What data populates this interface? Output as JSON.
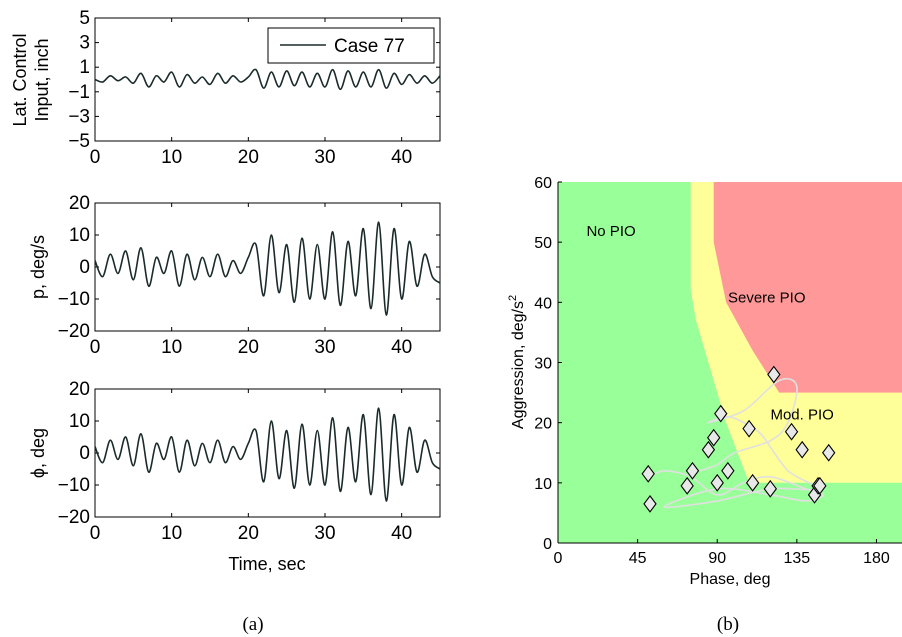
{
  "figure": {
    "caption_a": "(a)",
    "caption_b": "(b)"
  },
  "chart_data": [
    {
      "type": "line",
      "panel": "a-top",
      "ylabel_line1": "Lat. Control",
      "ylabel_line2": "Input, inch",
      "xlim": [
        0,
        45
      ],
      "ylim": [
        -5,
        5
      ],
      "xticks": [
        0,
        10,
        20,
        30,
        40
      ],
      "yticks": [
        -5,
        -3,
        -1,
        1,
        3,
        5
      ],
      "legend": "Case 77",
      "series": [
        {
          "name": "Case 77",
          "color": "#1b2b2b",
          "x": [
            0,
            1,
            2,
            3,
            4,
            5,
            6,
            7,
            8,
            9,
            10,
            11,
            12,
            13,
            14,
            15,
            16,
            17,
            18,
            19,
            20,
            21,
            22,
            23,
            24,
            25,
            26,
            27,
            28,
            29,
            30,
            31,
            32,
            33,
            34,
            35,
            36,
            37,
            38,
            39,
            40,
            41,
            42,
            43,
            44,
            45
          ],
          "y": [
            0,
            -0.2,
            0.3,
            -0.1,
            0.2,
            -0.3,
            0.5,
            -0.6,
            0.3,
            -0.2,
            0.6,
            -0.6,
            0.4,
            -0.3,
            0.2,
            -0.4,
            0.5,
            -0.3,
            0.3,
            -0.2,
            0.2,
            0.8,
            -0.7,
            0.6,
            -0.6,
            0.7,
            -0.5,
            0.6,
            -0.6,
            0.5,
            -0.6,
            0.8,
            -0.8,
            0.7,
            -0.6,
            0.6,
            -0.6,
            0.8,
            -0.7,
            0.5,
            -0.4,
            0.4,
            -0.3,
            0.3,
            -0.3,
            0.3
          ]
        }
      ]
    },
    {
      "type": "line",
      "panel": "a-mid",
      "ylabel": "p, deg/s",
      "xlim": [
        0,
        45
      ],
      "ylim": [
        -20,
        20
      ],
      "xticks": [
        0,
        10,
        20,
        30,
        40
      ],
      "yticks": [
        -20,
        -10,
        0,
        10,
        20
      ],
      "series": [
        {
          "color": "#1b2b2b",
          "x": [
            0,
            1,
            2,
            3,
            4,
            5,
            6,
            7,
            8,
            9,
            10,
            11,
            12,
            13,
            14,
            15,
            16,
            17,
            18,
            19,
            20,
            21,
            22,
            23,
            24,
            25,
            26,
            27,
            28,
            29,
            30,
            31,
            32,
            33,
            34,
            35,
            36,
            37,
            38,
            39,
            40,
            41,
            42,
            43,
            44,
            45
          ],
          "y": [
            2,
            -3,
            4,
            -2,
            5,
            -4,
            6,
            -6,
            3,
            -2,
            5,
            -6,
            4,
            -4,
            3,
            -3,
            4,
            -3,
            2,
            -2,
            3,
            7,
            -9,
            10,
            -8,
            7,
            -11,
            9,
            -10,
            7,
            -10,
            11,
            -12,
            8,
            -9,
            12,
            -13,
            14,
            -15,
            12,
            -10,
            8,
            -6,
            4,
            -3,
            -5
          ]
        }
      ]
    },
    {
      "type": "line",
      "panel": "a-bottom",
      "ylabel": "ϕ, deg",
      "xlabel": "Time, sec",
      "xlim": [
        0,
        45
      ],
      "ylim": [
        -20,
        20
      ],
      "xticks": [
        0,
        10,
        20,
        30,
        40
      ],
      "yticks": [
        -20,
        -10,
        0,
        10,
        20
      ],
      "series": [
        {
          "color": "#1b2b2b",
          "x": [
            0,
            1,
            2,
            3,
            4,
            5,
            6,
            7,
            8,
            9,
            10,
            11,
            12,
            13,
            14,
            15,
            16,
            17,
            18,
            19,
            20,
            21,
            22,
            23,
            24,
            25,
            26,
            27,
            28,
            29,
            30,
            31,
            32,
            33,
            34,
            35,
            36,
            37,
            38,
            39,
            40,
            41,
            42,
            43,
            44,
            45
          ],
          "y": [
            2,
            -3,
            4,
            -2,
            5,
            -4,
            6,
            -6,
            3,
            -2,
            5,
            -6,
            4,
            -4,
            3,
            -3,
            4,
            -3,
            2,
            -2,
            3,
            7,
            -9,
            10,
            -8,
            7,
            -11,
            9,
            -10,
            7,
            -10,
            11,
            -12,
            8,
            -9,
            12,
            -13,
            14,
            -15,
            12,
            -10,
            8,
            -6,
            4,
            -3,
            -5
          ]
        }
      ]
    },
    {
      "type": "scatter",
      "panel": "b",
      "xlabel": "Phase, deg",
      "ylabel": "Aggression, deg/s",
      "ylabel_sup": "2",
      "xlim": [
        0,
        195
      ],
      "ylim": [
        0,
        60
      ],
      "xticks": [
        0,
        45,
        90,
        135,
        180
      ],
      "yticks": [
        0,
        10,
        20,
        30,
        40,
        50,
        60
      ],
      "regions": [
        {
          "label": "No PIO",
          "color": "#99ff99",
          "label_at": [
            30,
            51
          ]
        },
        {
          "label": "Mod. PIO",
          "color": "#ffff99",
          "label_at": [
            138,
            20.5
          ]
        },
        {
          "label": "Severe PIO",
          "color": "#ff9999",
          "label_at": [
            118,
            40
          ]
        }
      ],
      "moderate_boundary": [
        [
          75,
          60
        ],
        [
          75,
          42
        ],
        [
          78,
          37
        ],
        [
          85,
          30
        ],
        [
          95,
          20
        ],
        [
          108,
          10
        ],
        [
          195,
          10
        ],
        [
          195,
          60
        ]
      ],
      "severe_boundary": [
        [
          88,
          60
        ],
        [
          88,
          50
        ],
        [
          95,
          40
        ],
        [
          110,
          32
        ],
        [
          125,
          25
        ],
        [
          195,
          25
        ],
        [
          195,
          60
        ]
      ],
      "trajectory": [
        [
          52,
          11
        ],
        [
          60,
          12
        ],
        [
          75,
          11
        ],
        [
          90,
          8
        ],
        [
          105,
          10
        ],
        [
          120,
          11
        ],
        [
          140,
          9
        ],
        [
          150,
          8
        ],
        [
          140,
          7
        ],
        [
          120,
          8
        ],
        [
          90,
          9
        ],
        [
          60,
          6
        ],
        [
          90,
          7
        ],
        [
          120,
          9
        ],
        [
          147,
          9
        ],
        [
          130,
          12
        ],
        [
          115,
          18
        ],
        [
          105,
          20
        ],
        [
          95,
          21
        ],
        [
          85,
          20
        ],
        [
          105,
          22
        ],
        [
          125,
          27
        ],
        [
          135,
          26
        ],
        [
          130,
          20
        ],
        [
          120,
          17
        ],
        [
          100,
          15
        ],
        [
          90,
          13
        ],
        [
          80,
          12
        ]
      ],
      "points": {
        "x": [
          52,
          51,
          73,
          76,
          85,
          88,
          90,
          92,
          96,
          108,
          110,
          122,
          120,
          132,
          138,
          145,
          147,
          148,
          153
        ],
        "y": [
          6.5,
          11.5,
          9.5,
          12,
          15.5,
          17.5,
          10,
          21.5,
          12,
          19,
          10,
          28,
          9,
          18.5,
          15.5,
          8,
          9.5,
          9.5,
          15
        ]
      }
    }
  ]
}
